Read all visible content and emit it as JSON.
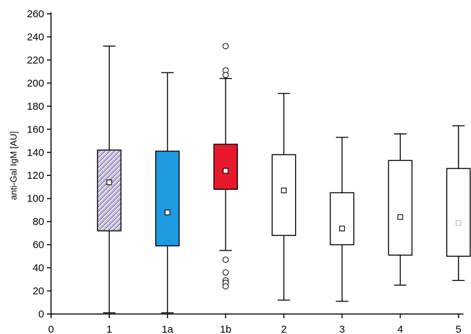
{
  "chart_data": {
    "type": "box",
    "title": "",
    "xlabel": "",
    "ylabel": "anti-Gal IgM [AU]",
    "xlim": [
      0,
      6
    ],
    "ylim": [
      0,
      260
    ],
    "x_ticks": [
      "0",
      "1",
      "1a",
      "1b",
      "2",
      "3",
      "4",
      "5"
    ],
    "y_ticks": [
      0,
      20,
      40,
      60,
      80,
      100,
      120,
      140,
      160,
      180,
      200,
      220,
      240,
      260
    ],
    "grid": false,
    "colors": {
      "hatch_red": "#e05a6a",
      "hatch_blue": "#5a7fd0",
      "blue_fill": "#1e9be0",
      "red_fill": "#e8192c",
      "plain_fill": "#ffffff",
      "line": "#000000"
    },
    "boxes": [
      {
        "category": "1",
        "min": 1,
        "q1": 72,
        "q3": 142,
        "max": 232,
        "mean": 114,
        "fill": "hatched",
        "outliers": []
      },
      {
        "category": "1a",
        "min": 1,
        "q1": 59,
        "q3": 141,
        "max": 209,
        "mean": 88,
        "fill": "blue",
        "outliers": []
      },
      {
        "category": "1b",
        "min": 55,
        "q1": 108,
        "q3": 147,
        "max": 204,
        "mean": 124,
        "fill": "red",
        "outliers": [
          232,
          211,
          207,
          47,
          36,
          29,
          27,
          24
        ]
      },
      {
        "category": "2",
        "min": 12,
        "q1": 68,
        "q3": 138,
        "max": 191,
        "mean": 107,
        "fill": "white",
        "outliers": []
      },
      {
        "category": "3",
        "min": 11,
        "q1": 60,
        "q3": 105,
        "max": 153,
        "mean": 74,
        "fill": "white",
        "outliers": []
      },
      {
        "category": "4",
        "min": 25,
        "q1": 51,
        "q3": 133,
        "max": 156,
        "mean": 84,
        "fill": "white",
        "outliers": []
      },
      {
        "category": "5",
        "min": 29,
        "q1": 50,
        "q3": 126,
        "max": 163,
        "mean": 79,
        "fill": "white",
        "mean_faint": true,
        "outliers": []
      }
    ]
  }
}
